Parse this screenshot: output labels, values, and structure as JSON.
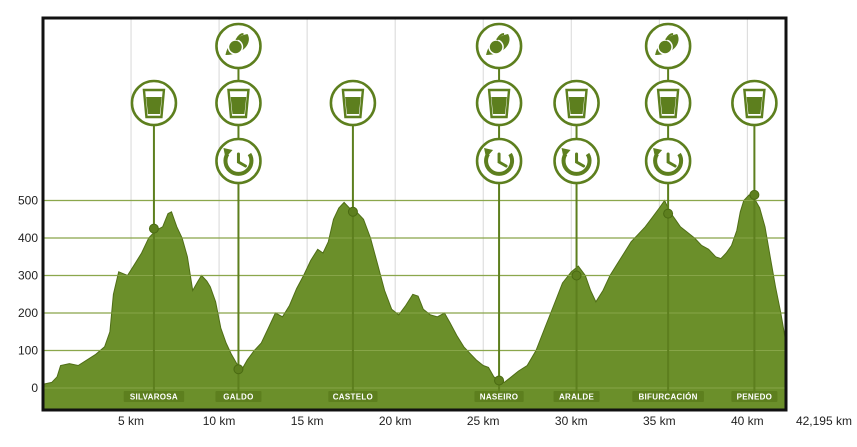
{
  "chart_data": {
    "type": "area",
    "xlabel": "",
    "ylabel": "",
    "x_unit": "km",
    "xlim": [
      0,
      42.195
    ],
    "ylim": [
      -30,
      580
    ],
    "grid": true,
    "colors": {
      "fill": "#6b8f2a",
      "line": "#4f6e16",
      "grid": "#7f9a3d",
      "icon": "#5d7f1e",
      "frame": "#111111"
    },
    "y_ticks": [
      0,
      100,
      200,
      300,
      400,
      500
    ],
    "x_ticks": [
      {
        "value": 5,
        "label": "5 km"
      },
      {
        "value": 10,
        "label": "10 km"
      },
      {
        "value": 15,
        "label": "15 km"
      },
      {
        "value": 20,
        "label": "20 km"
      },
      {
        "value": 25,
        "label": "25 km"
      },
      {
        "value": 30,
        "label": "30 km"
      },
      {
        "value": 35,
        "label": "35 km"
      },
      {
        "value": 40,
        "label": "40 km"
      },
      {
        "value": 42.195,
        "label": "42,195 km"
      }
    ],
    "profile": [
      [
        0,
        10
      ],
      [
        0.5,
        15
      ],
      [
        0.8,
        30
      ],
      [
        1.0,
        60
      ],
      [
        1.5,
        65
      ],
      [
        2.0,
        60
      ],
      [
        2.5,
        75
      ],
      [
        3.0,
        90
      ],
      [
        3.5,
        110
      ],
      [
        3.8,
        150
      ],
      [
        4.0,
        250
      ],
      [
        4.3,
        310
      ],
      [
        4.8,
        300
      ],
      [
        5.2,
        330
      ],
      [
        5.6,
        360
      ],
      [
        6.0,
        400
      ],
      [
        6.4,
        420
      ],
      [
        6.8,
        430
      ],
      [
        7.1,
        465
      ],
      [
        7.3,
        470
      ],
      [
        7.6,
        430
      ],
      [
        7.9,
        400
      ],
      [
        8.2,
        350
      ],
      [
        8.5,
        260
      ],
      [
        8.8,
        285
      ],
      [
        9.0,
        300
      ],
      [
        9.3,
        285
      ],
      [
        9.5,
        270
      ],
      [
        9.8,
        230
      ],
      [
        10.1,
        160
      ],
      [
        10.4,
        120
      ],
      [
        10.7,
        90
      ],
      [
        11.0,
        65
      ],
      [
        11.3,
        50
      ],
      [
        11.6,
        75
      ],
      [
        12.0,
        100
      ],
      [
        12.4,
        120
      ],
      [
        12.8,
        160
      ],
      [
        13.2,
        200
      ],
      [
        13.6,
        190
      ],
      [
        14.0,
        220
      ],
      [
        14.4,
        265
      ],
      [
        14.8,
        300
      ],
      [
        15.2,
        340
      ],
      [
        15.6,
        370
      ],
      [
        15.9,
        360
      ],
      [
        16.2,
        390
      ],
      [
        16.5,
        450
      ],
      [
        16.8,
        480
      ],
      [
        17.1,
        495
      ],
      [
        17.4,
        480
      ],
      [
        17.8,
        470
      ],
      [
        18.2,
        450
      ],
      [
        18.6,
        400
      ],
      [
        19.0,
        330
      ],
      [
        19.4,
        260
      ],
      [
        19.8,
        210
      ],
      [
        20.2,
        195
      ],
      [
        20.6,
        220
      ],
      [
        21.0,
        250
      ],
      [
        21.3,
        245
      ],
      [
        21.6,
        210
      ],
      [
        22.0,
        195
      ],
      [
        22.4,
        190
      ],
      [
        22.8,
        200
      ],
      [
        23.1,
        175
      ],
      [
        23.5,
        140
      ],
      [
        23.9,
        110
      ],
      [
        24.3,
        90
      ],
      [
        24.6,
        75
      ],
      [
        25.0,
        60
      ],
      [
        25.3,
        55
      ],
      [
        25.6,
        30
      ],
      [
        25.9,
        20
      ],
      [
        26.2,
        15
      ],
      [
        26.6,
        30
      ],
      [
        27.0,
        45
      ],
      [
        27.5,
        60
      ],
      [
        28.0,
        100
      ],
      [
        28.5,
        160
      ],
      [
        29.0,
        220
      ],
      [
        29.5,
        280
      ],
      [
        30.0,
        310
      ],
      [
        30.4,
        325
      ],
      [
        30.8,
        300
      ],
      [
        31.1,
        260
      ],
      [
        31.4,
        230
      ],
      [
        31.8,
        260
      ],
      [
        32.2,
        300
      ],
      [
        32.6,
        330
      ],
      [
        33.0,
        360
      ],
      [
        33.4,
        390
      ],
      [
        33.8,
        410
      ],
      [
        34.2,
        430
      ],
      [
        34.6,
        455
      ],
      [
        35.0,
        480
      ],
      [
        35.3,
        500
      ],
      [
        35.6,
        470
      ],
      [
        35.9,
        450
      ],
      [
        36.2,
        430
      ],
      [
        36.6,
        415
      ],
      [
        37.0,
        400
      ],
      [
        37.4,
        380
      ],
      [
        37.8,
        370
      ],
      [
        38.2,
        350
      ],
      [
        38.5,
        345
      ],
      [
        38.8,
        360
      ],
      [
        39.1,
        380
      ],
      [
        39.4,
        420
      ],
      [
        39.6,
        470
      ],
      [
        39.8,
        500
      ],
      [
        40.1,
        515
      ],
      [
        40.4,
        505
      ],
      [
        40.7,
        480
      ],
      [
        41.0,
        430
      ],
      [
        41.3,
        350
      ],
      [
        41.6,
        270
      ],
      [
        41.9,
        200
      ],
      [
        42.195,
        120
      ]
    ],
    "points": [
      {
        "name": "SILVAROSA",
        "km": 6.3,
        "alt": 425,
        "icons": [
          "drink"
        ]
      },
      {
        "name": "GALDO",
        "km": 11.1,
        "alt": 50,
        "icons": [
          "food",
          "drink",
          "clock"
        ]
      },
      {
        "name": "CASTELO",
        "km": 17.6,
        "alt": 470,
        "icons": [
          "drink"
        ]
      },
      {
        "name": "NASEIRO",
        "km": 25.9,
        "alt": 20,
        "icons": [
          "food",
          "drink",
          "clock"
        ]
      },
      {
        "name": "ARALDE",
        "km": 30.3,
        "alt": 300,
        "icons": [
          "drink",
          "clock"
        ]
      },
      {
        "name": "BIFURCACIÓN",
        "km": 35.5,
        "alt": 465,
        "icons": [
          "food",
          "drink",
          "clock"
        ]
      },
      {
        "name": "PENEDO",
        "km": 40.4,
        "alt": 515,
        "icons": [
          "drink"
        ]
      }
    ]
  }
}
